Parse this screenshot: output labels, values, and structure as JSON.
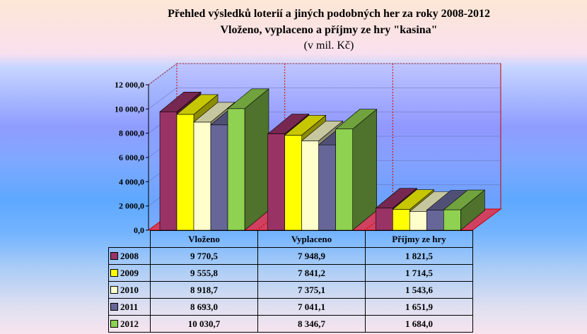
{
  "chart_data": {
    "type": "bar",
    "title": "Přehled výsledků loterií a jiných podobných her za roky 2008-2012",
    "subtitle": "Vloženo, vyplaceno a příjmy ze hry \"kasina\"",
    "unit_label": "(v mil. Kč)",
    "three_d": true,
    "categories": [
      "Vloženo",
      "Vyplaceno",
      "Příjmy ze hry"
    ],
    "series": [
      {
        "name": "2008",
        "color": "#993366",
        "values": [
          9770.5,
          7948.9,
          1821.5
        ],
        "labels": [
          "9 770,5",
          "7 948,9",
          "1 821,5"
        ]
      },
      {
        "name": "2009",
        "color": "#ffff00",
        "values": [
          9555.8,
          7841.2,
          1714.5
        ],
        "labels": [
          "9 555,8",
          "7 841,2",
          "1 714,5"
        ]
      },
      {
        "name": "2010",
        "color": "#ffffcc",
        "values": [
          8918.7,
          7375.1,
          1543.6
        ],
        "labels": [
          "8 918,7",
          "7 375,1",
          "1 543,6"
        ]
      },
      {
        "name": "2011",
        "color": "#666699",
        "values": [
          8693.0,
          7041.1,
          1651.9
        ],
        "labels": [
          "8 693,0",
          "7 041,1",
          "1 651,9"
        ]
      },
      {
        "name": "2012",
        "color": "#8fd150",
        "values": [
          10030.7,
          8346.7,
          1684.0
        ],
        "labels": [
          "10 030,7",
          "8 346,7",
          "1 684,0"
        ]
      }
    ],
    "ylim": [
      0,
      12000
    ],
    "yticks": [
      "0,0",
      "2 000,0",
      "4 000,0",
      "6 000,0",
      "8 000,0",
      "10 000,0",
      "12 000,0"
    ],
    "grid": true,
    "legend": "data-table"
  }
}
